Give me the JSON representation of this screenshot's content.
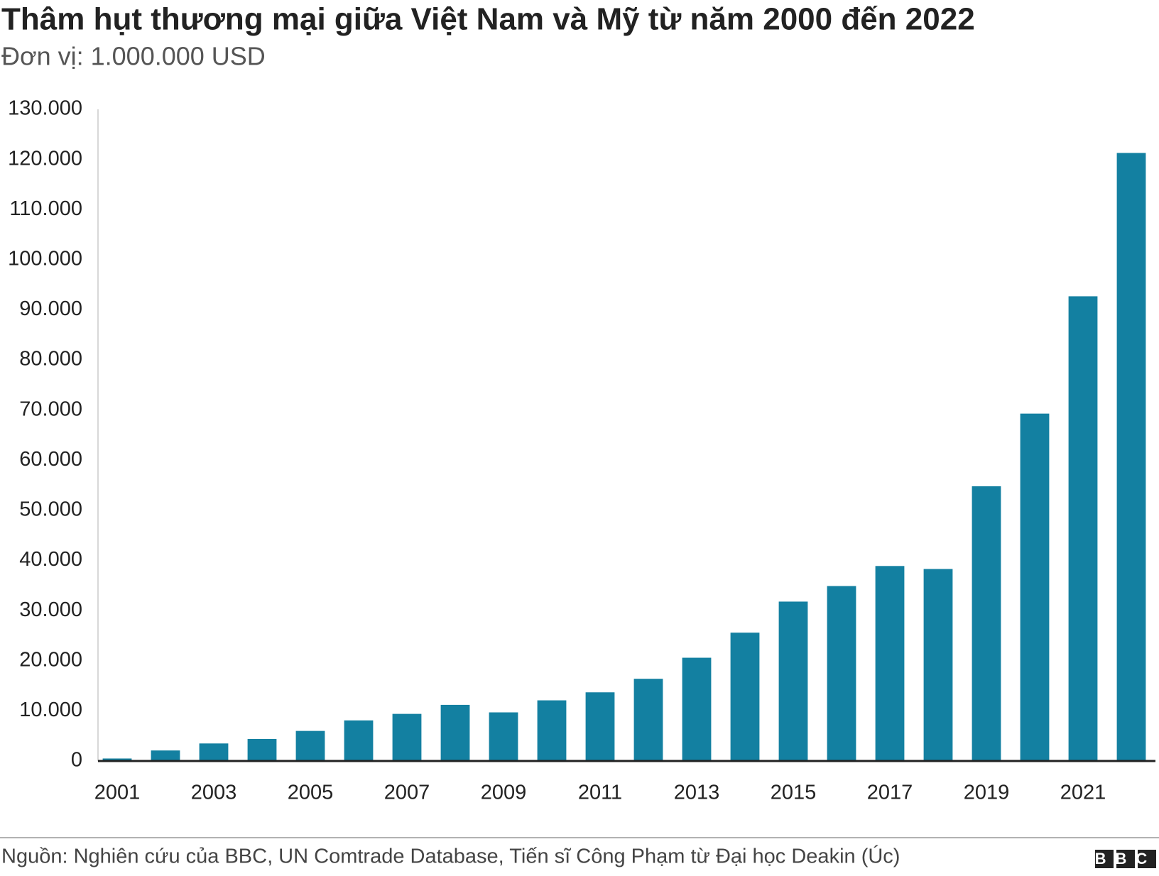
{
  "chart_data": {
    "type": "bar",
    "title": "Thâm hụt thương mại giữa Việt Nam và Mỹ từ năm 2000 đến 2022",
    "subtitle": "Đơn vị: 1.000.000 USD",
    "source": "Nguồn: Nghiên cứu của BBC, UN Comtrade Database, Tiến sĩ Công Phạm từ Đại học Deakin (Úc)",
    "logo": "BBC",
    "categories": [
      "2001",
      null,
      "2003",
      null,
      "2005",
      null,
      "2007",
      null,
      "2009",
      null,
      "2011",
      null,
      "2013",
      null,
      "2015",
      null,
      "2017",
      null,
      "2019",
      null,
      "2021",
      null
    ],
    "values": [
      500,
      2100,
      3500,
      4400,
      6000,
      8100,
      9400,
      11200,
      9700,
      12100,
      13700,
      16400,
      20600,
      25600,
      31800,
      34900,
      38900,
      38300,
      54800,
      69300,
      92700,
      121300
    ],
    "color": "#1380a1",
    "ylim": [
      0,
      130000
    ],
    "yticks": [
      0,
      {
        "value": 10000,
        "label": "10.000"
      },
      {
        "value": 20000,
        "label": "20.000"
      },
      {
        "value": 30000,
        "label": "30.000"
      },
      {
        "value": 40000,
        "label": "40.000"
      },
      {
        "value": 50000,
        "label": "50.000"
      },
      {
        "value": 60000,
        "label": "60.000"
      },
      {
        "value": 70000,
        "label": "70.000"
      },
      {
        "value": 80000,
        "label": "80.000"
      },
      {
        "value": 90000,
        "label": "90.000"
      },
      {
        "value": 100000,
        "label": "100.000"
      },
      {
        "value": 110000,
        "label": "110.000"
      },
      {
        "value": 120000,
        "label": "120.000"
      },
      {
        "value": 130000,
        "label": "130.000"
      }
    ],
    "grid": false
  }
}
